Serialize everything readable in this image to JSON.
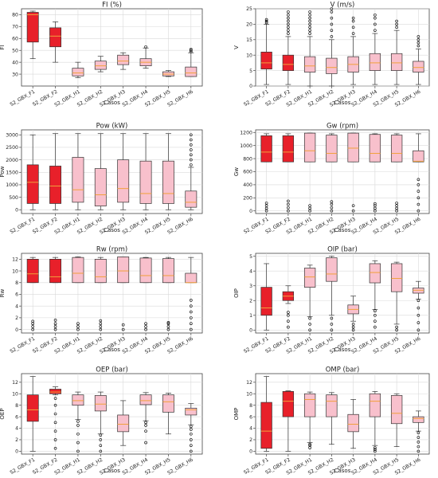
{
  "figure": {
    "x_axis_label": "Casos"
  },
  "colors": {
    "highlight": "#e8202a",
    "regular": "#f8c0cc",
    "box_edge": "#333333",
    "median": "#f1a13b",
    "grid": "#d9d9d9"
  },
  "chart_data": [
    {
      "type": "box",
      "title": "FI (%)",
      "ylabel": "FI",
      "xlabel": "Casos",
      "ylim": [
        20,
        85
      ],
      "yticks": [
        30,
        40,
        50,
        60,
        70,
        80
      ],
      "categories": [
        "S2_GBX_F1",
        "S2_GBX_F2",
        "S2_GBX_H1",
        "S2_GBX_H2",
        "S2_GBX_H3",
        "S2_GBX_H4",
        "S2_GBX_H5",
        "S2_GBX_H6"
      ],
      "boxes": [
        {
          "min": 43,
          "q1": 57,
          "median": 80,
          "q3": 82,
          "max": 83,
          "highlight": true
        },
        {
          "min": 40,
          "q1": 53,
          "median": 62,
          "q3": 69,
          "max": 74,
          "highlight": true
        },
        {
          "min": 27,
          "q1": 28.5,
          "median": 31,
          "q3": 35,
          "max": 40
        },
        {
          "min": 32,
          "q1": 34,
          "median": 37,
          "q3": 41,
          "max": 45
        },
        {
          "min": 34,
          "q1": 38,
          "median": 41,
          "q3": 46,
          "max": 48
        },
        {
          "min": 35,
          "q1": 37,
          "median": 40,
          "q3": 43,
          "max": 52,
          "outliers": [
            53
          ]
        },
        {
          "min": 28,
          "q1": 28.5,
          "median": 30,
          "q3": 32,
          "max": 33
        },
        {
          "min": 28,
          "q1": 28,
          "median": 31,
          "q3": 36,
          "max": 48,
          "outliers": [
            49,
            50,
            51
          ]
        }
      ]
    },
    {
      "type": "box",
      "title": "V (m/s)",
      "ylabel": "V",
      "xlabel": "Casos",
      "ylim": [
        0,
        25
      ],
      "yticks": [
        0,
        5,
        10,
        15,
        20,
        25
      ],
      "categories": [
        "S2_GBX_F1",
        "S2_GBX_F2",
        "S2_GBX_H1",
        "S2_GBX_H2",
        "S2_GBX_H3",
        "S2_GBX_H4",
        "S2_GBX_H5",
        "S2_GBX_H6"
      ],
      "boxes": [
        {
          "min": 0.5,
          "q1": 5.5,
          "median": 7.5,
          "q3": 11,
          "max": 20,
          "highlight": true,
          "outliers": [
            20.5,
            21,
            21.5
          ]
        },
        {
          "min": 0.5,
          "q1": 5,
          "median": 7,
          "q3": 10,
          "max": 16,
          "highlight": true,
          "outliers": [
            17,
            18,
            19,
            20,
            21,
            22,
            23,
            24
          ]
        },
        {
          "min": 0,
          "q1": 4.5,
          "median": 6.5,
          "q3": 9.5,
          "max": 16,
          "outliers": [
            17,
            18,
            19,
            20,
            21,
            22,
            23,
            24
          ]
        },
        {
          "min": 0,
          "q1": 4,
          "median": 6,
          "q3": 9,
          "max": 15,
          "outliers": [
            16,
            18,
            20,
            22,
            24,
            25
          ]
        },
        {
          "min": 0.5,
          "q1": 4.5,
          "median": 7,
          "q3": 9.5,
          "max": 16,
          "outliers": [
            17,
            19,
            21,
            22
          ]
        },
        {
          "min": 0.5,
          "q1": 5,
          "median": 7.5,
          "q3": 10.5,
          "max": 17,
          "outliers": [
            18,
            20,
            22,
            23
          ]
        },
        {
          "min": 0.5,
          "q1": 5,
          "median": 7.5,
          "q3": 10.5,
          "max": 18,
          "outliers": [
            19,
            20,
            21
          ]
        },
        {
          "min": 0.5,
          "q1": 4.5,
          "median": 6,
          "q3": 8,
          "max": 12,
          "outliers": [
            13,
            14,
            15,
            16
          ]
        }
      ]
    },
    {
      "type": "box",
      "title": "Pow (kW)",
      "ylabel": "Pow",
      "xlabel": "Casos",
      "ylim": [
        -150,
        3200
      ],
      "yticks": [
        0,
        500,
        1000,
        1500,
        2000,
        2500,
        3000
      ],
      "categories": [
        "S2_GBX_F1",
        "S2_GBX_F2",
        "S2_GBX_H1",
        "S2_GBX_H2",
        "S2_GBX_H3",
        "S2_GBX_H4",
        "S2_GBX_H5",
        "S2_GBX_H6"
      ],
      "boxes": [
        {
          "min": 0,
          "q1": 250,
          "median": 1100,
          "q3": 1800,
          "max": 3000,
          "highlight": true
        },
        {
          "min": 0,
          "q1": 250,
          "median": 950,
          "q3": 1750,
          "max": 3050,
          "highlight": true
        },
        {
          "min": 0,
          "q1": 300,
          "median": 800,
          "q3": 2100,
          "max": 3050
        },
        {
          "min": 0,
          "q1": 150,
          "median": 600,
          "q3": 1650,
          "max": 3050
        },
        {
          "min": 0,
          "q1": 300,
          "median": 850,
          "q3": 2000,
          "max": 3050
        },
        {
          "min": 0,
          "q1": 250,
          "median": 650,
          "q3": 1950,
          "max": 3050
        },
        {
          "min": 0,
          "q1": 250,
          "median": 650,
          "q3": 1950,
          "max": 3050
        },
        {
          "min": 0,
          "q1": 100,
          "median": 300,
          "q3": 750,
          "max": 1700,
          "outliers": [
            1800,
            2000,
            2200,
            2400,
            2600,
            2800,
            3000
          ]
        }
      ]
    },
    {
      "type": "box",
      "title": "Gw (rpm)",
      "ylabel": "Gw",
      "xlabel": "Casos",
      "ylim": [
        -40,
        1240
      ],
      "yticks": [
        0,
        200,
        400,
        600,
        800,
        1000,
        1200
      ],
      "categories": [
        "S2_GBX_F1",
        "S2_GBX_F2",
        "S2_GBX_H1",
        "S2_GBX_H2",
        "S2_GBX_H3",
        "S2_GBX_H4",
        "S2_GBX_H5",
        "S2_GBX_H6"
      ],
      "boxes": [
        {
          "min": 750,
          "q1": 750,
          "median": 900,
          "q3": 1150,
          "max": 1180,
          "highlight": true,
          "outliers": [
            0,
            40,
            80,
            120
          ]
        },
        {
          "min": 750,
          "q1": 750,
          "median": 900,
          "q3": 1150,
          "max": 1180,
          "highlight": true,
          "outliers": [
            0,
            50,
            100,
            150
          ]
        },
        {
          "min": 750,
          "q1": 750,
          "median": 920,
          "q3": 1190,
          "max": 1190,
          "outliers": [
            0,
            40,
            80
          ]
        },
        {
          "min": 750,
          "q1": 750,
          "median": 880,
          "q3": 1160,
          "max": 1180,
          "outliers": [
            0,
            50,
            100,
            140
          ]
        },
        {
          "min": 750,
          "q1": 750,
          "median": 960,
          "q3": 1190,
          "max": 1190,
          "outliers": [
            0,
            80
          ]
        },
        {
          "min": 750,
          "q1": 750,
          "median": 880,
          "q3": 1170,
          "max": 1180,
          "outliers": [
            0,
            40,
            80,
            110
          ]
        },
        {
          "min": 750,
          "q1": 750,
          "median": 880,
          "q3": 1160,
          "max": 1180,
          "outliers": [
            0,
            40,
            80,
            120
          ]
        },
        {
          "min": 750,
          "q1": 750,
          "median": 760,
          "q3": 920,
          "max": 1180,
          "outliers": [
            0,
            100,
            200,
            300,
            400,
            480
          ]
        }
      ]
    },
    {
      "type": "box",
      "title": "Rw (rpm)",
      "ylabel": "Rw",
      "xlabel": "Casos",
      "ylim": [
        -0.6,
        13
      ],
      "yticks": [
        0,
        2,
        4,
        6,
        8,
        10,
        12
      ],
      "categories": [
        "S2_GBX_F1",
        "S2_GBX_F2",
        "S2_GBX_H1",
        "S2_GBX_H2",
        "S2_GBX_H3",
        "S2_GBX_H4",
        "S2_GBX_H5",
        "S2_GBX_H6"
      ],
      "boxes": [
        {
          "min": 8,
          "q1": 8,
          "median": 9.5,
          "q3": 12,
          "max": 12.3,
          "highlight": true,
          "outliers": [
            0,
            0.5,
            1,
            1.4
          ]
        },
        {
          "min": 8,
          "q1": 8,
          "median": 9,
          "q3": 12,
          "max": 12.3,
          "highlight": true,
          "outliers": [
            0,
            0.5,
            1,
            1.6
          ]
        },
        {
          "min": 8,
          "q1": 8,
          "median": 9.6,
          "q3": 12.3,
          "max": 12.4,
          "outliers": [
            0,
            0.5,
            1
          ]
        },
        {
          "min": 8,
          "q1": 8,
          "median": 9,
          "q3": 12,
          "max": 12.3,
          "outliers": [
            0,
            0.5,
            1,
            1.5
          ]
        },
        {
          "min": 8,
          "q1": 8,
          "median": 10,
          "q3": 12.4,
          "max": 12.4,
          "outliers": [
            0,
            0.8
          ]
        },
        {
          "min": 8,
          "q1": 8,
          "median": 9.2,
          "q3": 12.2,
          "max": 12.3,
          "outliers": [
            0,
            0.5,
            1
          ]
        },
        {
          "min": 8,
          "q1": 8,
          "median": 9.2,
          "q3": 12.1,
          "max": 12.3,
          "outliers": [
            0,
            0.5,
            1,
            1.2
          ]
        },
        {
          "min": 8,
          "q1": 8,
          "median": 8,
          "q3": 9.6,
          "max": 12.3,
          "outliers": [
            0,
            1,
            2,
            3,
            4,
            5
          ]
        }
      ]
    },
    {
      "type": "box",
      "title": "OIP (bar)",
      "ylabel": "OIP",
      "xlabel": "Casos",
      "ylim": [
        -0.2,
        5.2
      ],
      "yticks": [
        0,
        1,
        2,
        3,
        4,
        5
      ],
      "categories": [
        "S2_GBX_F1",
        "S2_GBX_F2",
        "S2_GBX_H1",
        "S2_GBX_H2",
        "S2_GBX_H3",
        "S2_GBX_H4",
        "S2_GBX_H5",
        "S2_GBX_H6"
      ],
      "boxes": [
        {
          "min": 0,
          "q1": 1,
          "median": 1.5,
          "q3": 2.9,
          "max": 4.5,
          "highlight": true
        },
        {
          "min": 1.8,
          "q1": 2,
          "median": 2.3,
          "q3": 2.6,
          "max": 3,
          "highlight": true,
          "outliers": [
            0.2,
            0.6,
            1,
            1.2
          ]
        },
        {
          "min": 0.9,
          "q1": 2.9,
          "median": 3.6,
          "q3": 4.2,
          "max": 4.4,
          "outliers": [
            0,
            0.4,
            0.8
          ]
        },
        {
          "min": 1,
          "q1": 3.3,
          "median": 3.8,
          "q3": 4.9,
          "max": 5,
          "outliers": [
            0,
            0.4,
            0.8
          ]
        },
        {
          "min": 0.6,
          "q1": 1.1,
          "median": 1.4,
          "q3": 1.7,
          "max": 2.3,
          "outliers": [
            0,
            0.2,
            0.4
          ]
        },
        {
          "min": 1.4,
          "q1": 3.2,
          "median": 3.9,
          "q3": 4.5,
          "max": 4.7,
          "outliers": [
            0.2,
            0.6,
            1,
            1.3
          ]
        },
        {
          "min": 0.4,
          "q1": 2.6,
          "median": 3.5,
          "q3": 4.5,
          "max": 4.6,
          "outliers": [
            0,
            0.2
          ]
        },
        {
          "min": 2.1,
          "q1": 2.5,
          "median": 2.7,
          "q3": 2.85,
          "max": 3.3,
          "outliers": [
            0,
            0.5,
            1,
            1.5,
            2
          ]
        }
      ]
    },
    {
      "type": "box",
      "title": "OEP (bar)",
      "ylabel": "OEP",
      "xlabel": "Casos",
      "ylim": [
        -0.5,
        13.5
      ],
      "yticks": [
        0,
        2,
        4,
        6,
        8,
        10,
        12
      ],
      "categories": [
        "S2_GBX_F1",
        "S2_GBX_F2",
        "S2_GBX_H1",
        "S2_GBX_H2",
        "S2_GBX_H3",
        "S2_GBX_H4",
        "S2_GBX_H5",
        "S2_GBX_H6"
      ],
      "boxes": [
        {
          "min": 0,
          "q1": 5.2,
          "median": 7.2,
          "q3": 9.8,
          "max": 13,
          "highlight": true
        },
        {
          "min": 9.8,
          "q1": 10,
          "median": 10.3,
          "q3": 10.8,
          "max": 11.2,
          "highlight": true,
          "outliers": [
            0.5,
            2,
            3.5,
            5,
            6.5,
            8,
            9.2
          ]
        },
        {
          "min": 5.5,
          "q1": 8,
          "median": 8.8,
          "q3": 9.8,
          "max": 10.3,
          "outliers": [
            0,
            1.5,
            3,
            4.5,
            5.2
          ]
        },
        {
          "min": 3,
          "q1": 7,
          "median": 8.2,
          "q3": 9.7,
          "max": 10.3,
          "outliers": [
            0,
            1,
            2,
            2.8
          ]
        },
        {
          "min": 1,
          "q1": 3.4,
          "median": 4.7,
          "q3": 6.3,
          "max": 8.8
        },
        {
          "min": 5.3,
          "q1": 8.1,
          "median": 8.8,
          "q3": 9.8,
          "max": 10.2,
          "outliers": [
            1.5,
            3.5,
            4.5,
            5
          ]
        },
        {
          "min": 3,
          "q1": 6.8,
          "median": 8.6,
          "q3": 9.8,
          "max": 10.1
        },
        {
          "min": 4.6,
          "q1": 6.3,
          "median": 7.2,
          "q3": 7.5,
          "max": 8.3,
          "outliers": [
            0,
            1,
            2,
            3,
            3.8,
            4.3
          ]
        }
      ]
    },
    {
      "type": "box",
      "title": "OMP (bar)",
      "ylabel": "OMP",
      "xlabel": "Casos",
      "ylim": [
        -0.5,
        13.5
      ],
      "yticks": [
        0,
        2,
        4,
        6,
        8,
        10,
        12
      ],
      "categories": [
        "S2_GBX_F1",
        "S2_GBX_F2",
        "S2_GBX_H1",
        "S2_GBX_H2",
        "S2_GBX_H3",
        "S2_GBX_H4",
        "S2_GBX_H5",
        "S2_GBX_H6"
      ],
      "boxes": [
        {
          "min": 0,
          "q1": 0.5,
          "median": 3.5,
          "q3": 8.5,
          "max": 13,
          "highlight": true
        },
        {
          "min": 0,
          "q1": 6,
          "median": 8.7,
          "q3": 10.4,
          "max": 10.5,
          "highlight": true
        },
        {
          "min": 1.5,
          "q1": 6,
          "median": 9,
          "q3": 10,
          "max": 10.3,
          "outliers": [
            0.6,
            1,
            1.2
          ]
        },
        {
          "min": 1.2,
          "q1": 6,
          "median": 8.7,
          "q3": 9.8,
          "max": 10.2
        },
        {
          "min": 0.5,
          "q1": 3.4,
          "median": 4.7,
          "q3": 6.4,
          "max": 9
        },
        {
          "min": 1,
          "q1": 6,
          "median": 8.7,
          "q3": 10,
          "max": 10.4,
          "outliers": [
            0,
            0.3,
            0.6
          ]
        },
        {
          "min": 0.8,
          "q1": 4.8,
          "median": 6.6,
          "q3": 9.7,
          "max": 10
        },
        {
          "min": 3.5,
          "q1": 5,
          "median": 5.7,
          "q3": 6,
          "max": 7,
          "outliers": [
            0,
            0.8,
            1.6,
            2.4,
            3.2
          ]
        }
      ]
    }
  ]
}
